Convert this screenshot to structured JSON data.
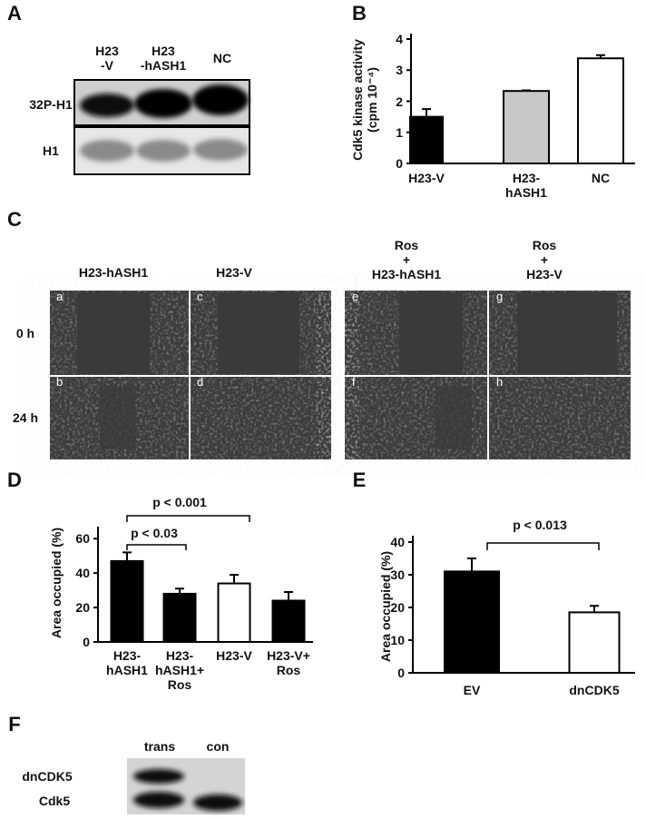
{
  "panel_labels": [
    "A",
    "B",
    "C",
    "D",
    "E",
    "F"
  ],
  "blot_a": {
    "lanes": [
      "H23\n-V",
      "H23\n-hASH1",
      "NC"
    ],
    "rows": [
      "32P-H1",
      "H1"
    ]
  },
  "panel_c": {
    "columns": [
      "H23-hASH1",
      "H23-V",
      "Ros\n+\nH23-hASH1",
      "Ros\n+\nH23-V"
    ],
    "rows": [
      "0 h",
      "24 h"
    ],
    "tiles": [
      "a",
      "b",
      "c",
      "d",
      "e",
      "f",
      "g",
      "h"
    ]
  },
  "blot_f": {
    "lanes": [
      "trans",
      "con"
    ],
    "rows": [
      "dnCDK5",
      "Cdk5"
    ]
  },
  "chart_data": [
    {
      "type": "bar",
      "ylabel": "Cdk5 kinase activity\n(cpm 10⁻⁴)",
      "categories": [
        "H23-V",
        "H23-\nhASH1",
        "NC"
      ],
      "values": [
        1.5,
        2.33,
        3.38
      ],
      "errors": [
        0.25,
        0.02,
        0.1
      ],
      "colors": [
        "#000000",
        "#c8c8c8",
        "#ffffff"
      ],
      "ylim": [
        0,
        4
      ],
      "yticks": [
        0,
        1,
        2,
        3,
        4
      ]
    },
    {
      "type": "bar",
      "ylabel": "Area occupied (%)",
      "categories": [
        "H23-\nhASH1",
        "H23-\nhASH1+\nRos",
        "H23-V",
        "H23-V+\nRos"
      ],
      "values": [
        47,
        28,
        34,
        24
      ],
      "errors": [
        5,
        3,
        5,
        5
      ],
      "colors": [
        "#000000",
        "#000000",
        "#ffffff",
        "#000000"
      ],
      "ylim": [
        0,
        67
      ],
      "yticks": [
        0,
        20,
        40,
        60
      ],
      "annotations": [
        "p < 0.001",
        "p < 0.03"
      ]
    },
    {
      "type": "bar",
      "ylabel": "Area occupied (%)",
      "categories": [
        "EV",
        "dnCDK5"
      ],
      "values": [
        31,
        18.5
      ],
      "errors": [
        4,
        2
      ],
      "colors": [
        "#000000",
        "#ffffff"
      ],
      "ylim": [
        0,
        40
      ],
      "yticks": [
        0,
        10,
        20,
        30,
        40
      ],
      "annotations": [
        "p < 0.013"
      ]
    }
  ]
}
